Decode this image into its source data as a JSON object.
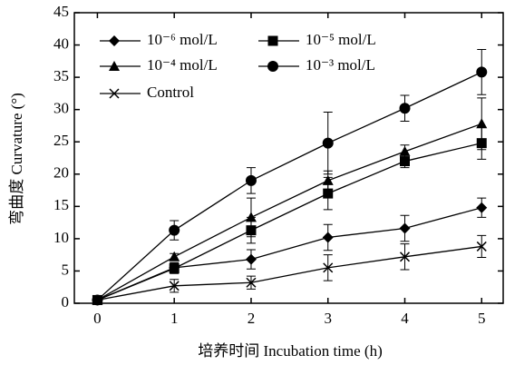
{
  "chart_data": {
    "type": "line",
    "x_label": "培养时间  Incubation time (h)",
    "y_label": "弯曲度 Curvature (°)",
    "x": [
      0,
      1,
      2,
      3,
      4,
      5
    ],
    "xlim": [
      -0.3,
      5.28
    ],
    "xticks": [
      0,
      1,
      2,
      3,
      4,
      5
    ],
    "ylim": [
      0,
      45
    ],
    "yticks": [
      0,
      5,
      10,
      15,
      20,
      25,
      30,
      35,
      40,
      45
    ],
    "series": [
      {
        "name": "10⁻⁶ mol/L",
        "color": "#000000",
        "marker": "diamond",
        "values": [
          0.5,
          5.5,
          6.8,
          10.2,
          11.6,
          14.8
        ],
        "errors": [
          0.3,
          0.8,
          1.5,
          2,
          2,
          1.5
        ]
      },
      {
        "name": "10⁻⁵ mol/L",
        "color": "#000000",
        "marker": "square",
        "values": [
          0.5,
          5.4,
          11.3,
          17,
          22,
          24.8
        ],
        "errors": [
          0.3,
          0.8,
          2,
          2.5,
          1,
          2.5
        ]
      },
      {
        "name": "10⁻⁴ mol/L",
        "color": "#000000",
        "marker": "triangle",
        "values": [
          0.5,
          7.2,
          13.3,
          19,
          23.5,
          27.8
        ],
        "errors": [
          0.3,
          0.5,
          3,
          1.5,
          1,
          4
        ]
      },
      {
        "name": "10⁻³ mol/L",
        "color": "#000000",
        "marker": "circle",
        "values": [
          0.5,
          11.3,
          19,
          24.8,
          30.2,
          35.8
        ],
        "errors": [
          0.3,
          1.5,
          2,
          4.8,
          2,
          3.5
        ]
      },
      {
        "name": "Control",
        "color": "#000000",
        "marker": "x",
        "values": [
          0.5,
          2.7,
          3.2,
          5.5,
          7.2,
          8.8
        ],
        "errors": [
          0.3,
          1,
          1,
          2,
          2,
          1.7
        ]
      }
    ]
  }
}
